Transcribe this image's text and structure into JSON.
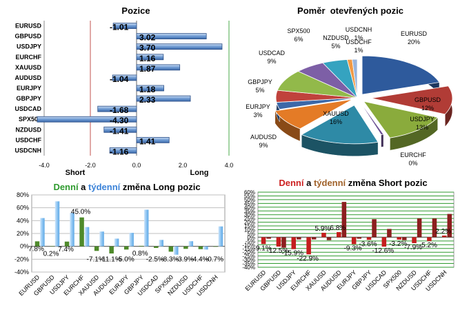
{
  "chart_data": [
    {
      "id": "positions",
      "type": "bar",
      "orientation": "horizontal",
      "title": "Pozice",
      "categories": [
        "EURUSD",
        "GBPUSD",
        "USDJPY",
        "EURCHF",
        "XAUUSD",
        "AUDUSD",
        "EURJPY",
        "GBPJPY",
        "USDCAD",
        "SPX500",
        "NZDUSD",
        "USDCHF",
        "USDCNH"
      ],
      "values": [
        -1.01,
        3.02,
        3.7,
        1.16,
        1.87,
        -1.04,
        1.18,
        2.33,
        -1.68,
        -4.3,
        -1.41,
        1.41,
        -1.16
      ],
      "value_labels": [
        "-1.01",
        "3.02",
        "3.70",
        "1.16",
        "1.87",
        "-1.04",
        "1.18",
        "2.33",
        "-1.68",
        "-4.30",
        "-1.41",
        "1.41",
        "-1.16"
      ],
      "xlim": [
        -4.0,
        4.0
      ],
      "xticks": [
        "-4.0",
        "-2.0",
        "0.0",
        "2.0",
        "4.0"
      ],
      "threshold_left_label": "Short",
      "threshold_right_label": "Long",
      "threshold_left": -2.0,
      "threshold_right": 4.0,
      "colors": {
        "bar": "#4f7fc0",
        "short_line": "#c0504d",
        "long_line": "#4aa84a"
      }
    },
    {
      "id": "open_ratio",
      "type": "pie",
      "title": "Poměr  otevřených pozic",
      "slices": [
        {
          "label": "EURUSD",
          "pct": "20%",
          "value": 20,
          "color": "#2e5a9c"
        },
        {
          "label": "GBPUSD",
          "pct": "12%",
          "value": 12,
          "color": "#b13c36"
        },
        {
          "label": "USDJPY",
          "pct": "13%",
          "value": 13,
          "color": "#8aab3c"
        },
        {
          "label": "EURCHF",
          "pct": "0%",
          "value": 0.5,
          "color": "#6a4f92"
        },
        {
          "label": "XAUUSD",
          "pct": "16%",
          "value": 16,
          "color": "#2e8aa6"
        },
        {
          "label": "AUDUSD",
          "pct": "9%",
          "value": 9,
          "color": "#e47b26"
        },
        {
          "label": "EURJPY",
          "pct": "3%",
          "value": 3,
          "color": "#3b68a8"
        },
        {
          "label": "GBPJPY",
          "pct": "5%",
          "value": 5,
          "color": "#c0423c"
        },
        {
          "label": "USDCAD",
          "pct": "9%",
          "value": 9,
          "color": "#92b94a"
        },
        {
          "label": "SPX500",
          "pct": "6%",
          "value": 6,
          "color": "#7d5fa6"
        },
        {
          "label": "NZDUSD",
          "pct": "5%",
          "value": 5,
          "color": "#35a3c0"
        },
        {
          "label": "USDCHF",
          "pct": "1%",
          "value": 1,
          "color": "#f19a45"
        },
        {
          "label": "USDCNH",
          "pct": "1%",
          "value": 1,
          "color": "#98b4dc"
        }
      ]
    },
    {
      "id": "long_change",
      "type": "bar",
      "title_parts": [
        "Denní",
        " a ",
        "týdenní",
        " změna Long pozic"
      ],
      "title_colors": [
        "#2e9a2e",
        "#000000",
        "#3a82d8",
        "#000000"
      ],
      "categories": [
        "EURUSD",
        "GBPUSD",
        "USDJPY",
        "EURCHF",
        "XAUUSD",
        "AUDUSD",
        "EURJPY",
        "GBPJPY",
        "USDCAD",
        "SPX500",
        "NZDUSD",
        "USDCHF",
        "USDCNH"
      ],
      "series": [
        {
          "values": [
            7.8,
            0.2,
            7.4,
            45.0,
            -7.1,
            -11.1,
            -5.0,
            0.8,
            -2.5,
            -8.3,
            -3.9,
            -4.4,
            -0.7
          ],
          "color": "#4e8a2a"
        },
        {
          "values": [
            44,
            70,
            52,
            30,
            23,
            12,
            21,
            57,
            10,
            -13,
            8,
            -5,
            31
          ],
          "color": "#8ec5f2"
        }
      ],
      "data_labels": [
        "7.8%",
        "0.2%",
        "7.4%",
        "45.0%",
        "-7.1%",
        "-11.1%",
        "-5.0%",
        "0.8%",
        "-2.5%",
        "-8.3%",
        "-3.9%",
        "-4.4%",
        "-0.7%"
      ],
      "ylim": [
        -40,
        80
      ],
      "yticks": [
        "-40%",
        "-20%",
        "0%",
        "20%",
        "40%",
        "60%",
        "80%"
      ],
      "grid": true
    },
    {
      "id": "short_change",
      "type": "bar",
      "title_parts": [
        "Denní",
        " a ",
        "týdenní",
        " změna Short pozic"
      ],
      "title_colors": [
        "#cc1f1f",
        "#000000",
        "#a0622a",
        "#000000"
      ],
      "categories": [
        "EURUSD",
        "GBPUSD",
        "USDJPY",
        "EURCHF",
        "XAUUSD",
        "AUDUSD",
        "EURJPY",
        "GBPJPY",
        "USDCAD",
        "SPX500",
        "NZDUSD",
        "USDCHF",
        "USDCNH"
      ],
      "series": [
        {
          "values": [
            -9.1,
            -12.5,
            -15.9,
            -22.9,
            5.9,
            6.8,
            -9.3,
            -3.6,
            -12.6,
            -3.2,
            -7.9,
            -5.2,
            2.2
          ],
          "color": "#c41e1e"
        },
        {
          "values": [
            -2,
            -14,
            -3,
            -3,
            -4,
            47,
            -2,
            24,
            11,
            -4,
            25,
            25,
            31
          ],
          "color": "#8c1f1f"
        }
      ],
      "data_labels": [
        "-9.1%",
        "-12.5%",
        "-15.9%",
        "-22.9%",
        "5.9%",
        "6.8%",
        "-9.3%",
        "-3.6%",
        "-12.6%",
        "-3.2%",
        "-7.9%",
        "-5.2%",
        "2.2%"
      ],
      "ylim": [
        -40,
        60
      ],
      "yticks": [
        "-40%",
        "-35%",
        "-30%",
        "-25%",
        "-20%",
        "-15%",
        "-10%",
        "-5%",
        "0%",
        "5%",
        "10%",
        "15%",
        "20%",
        "25%",
        "30%",
        "35%",
        "40%",
        "45%",
        "50%",
        "55%",
        "60%"
      ],
      "grid": true
    }
  ]
}
